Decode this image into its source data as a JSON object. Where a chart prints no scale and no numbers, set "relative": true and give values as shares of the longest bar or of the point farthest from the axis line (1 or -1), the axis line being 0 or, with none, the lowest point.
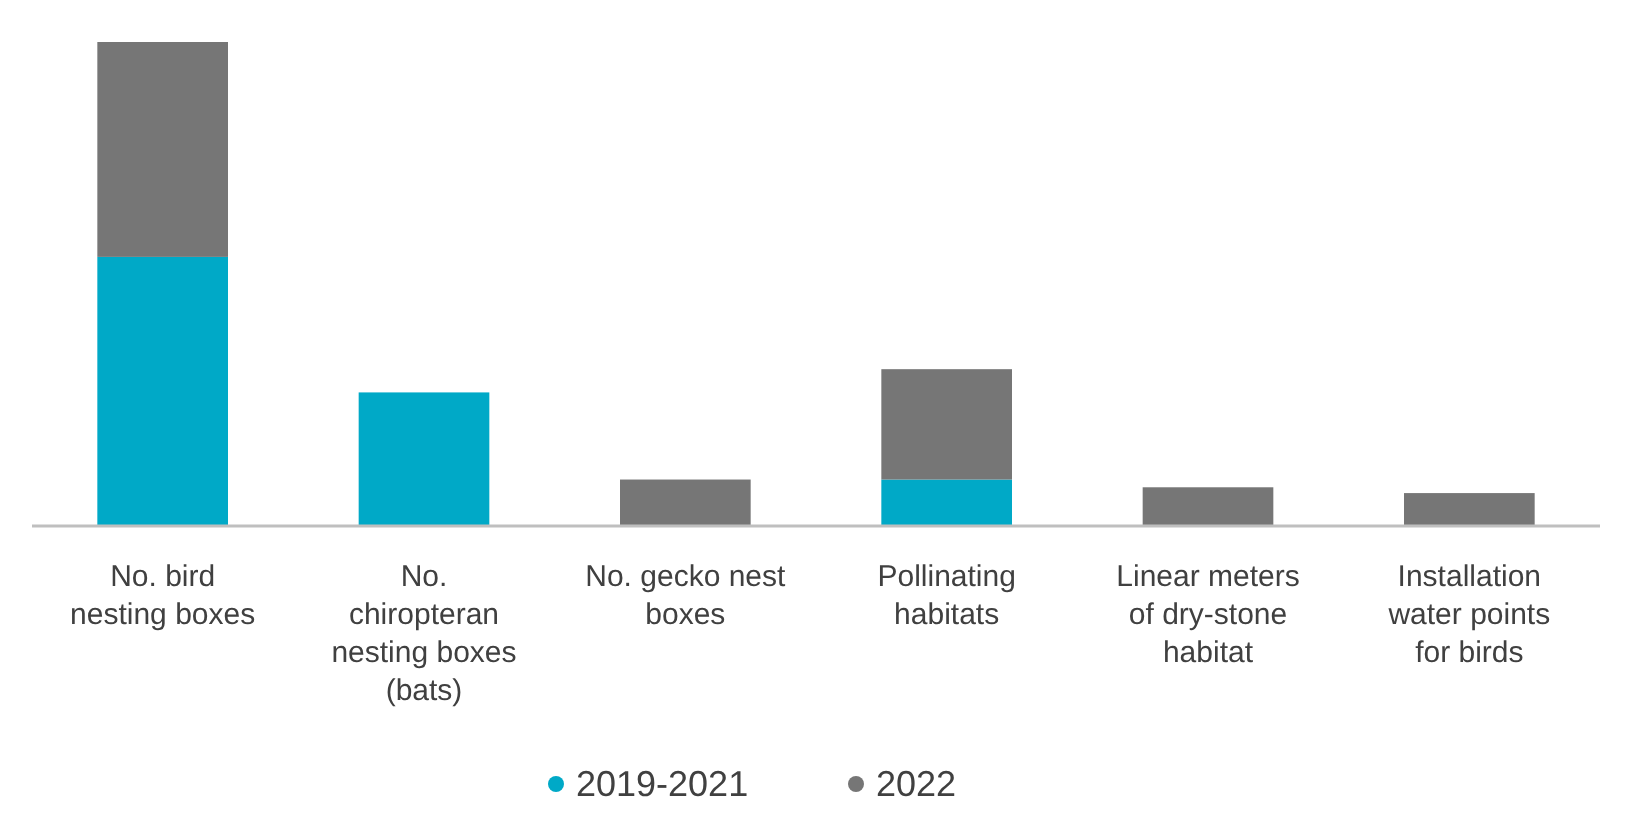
{
  "chart_data": {
    "type": "bar",
    "stacked": true,
    "relative": true,
    "legend": "bottom",
    "categories": [
      "No. bird nesting boxes",
      "No. chiropteran nesting boxes (bats)",
      "No. gecko nest boxes",
      "Pollinating habitats",
      "Linear meters of dry-stone habitat",
      "Installation water points for birds"
    ],
    "series": [
      {
        "name": "2019-2021",
        "color": "#00a9c7",
        "values": [
          0.556,
          0.276,
          null,
          0.096,
          null,
          null
        ]
      },
      {
        "name": "2022",
        "color": "#767676",
        "values": [
          0.444,
          null,
          0.096,
          0.228,
          0.08,
          0.068
        ]
      }
    ]
  }
}
